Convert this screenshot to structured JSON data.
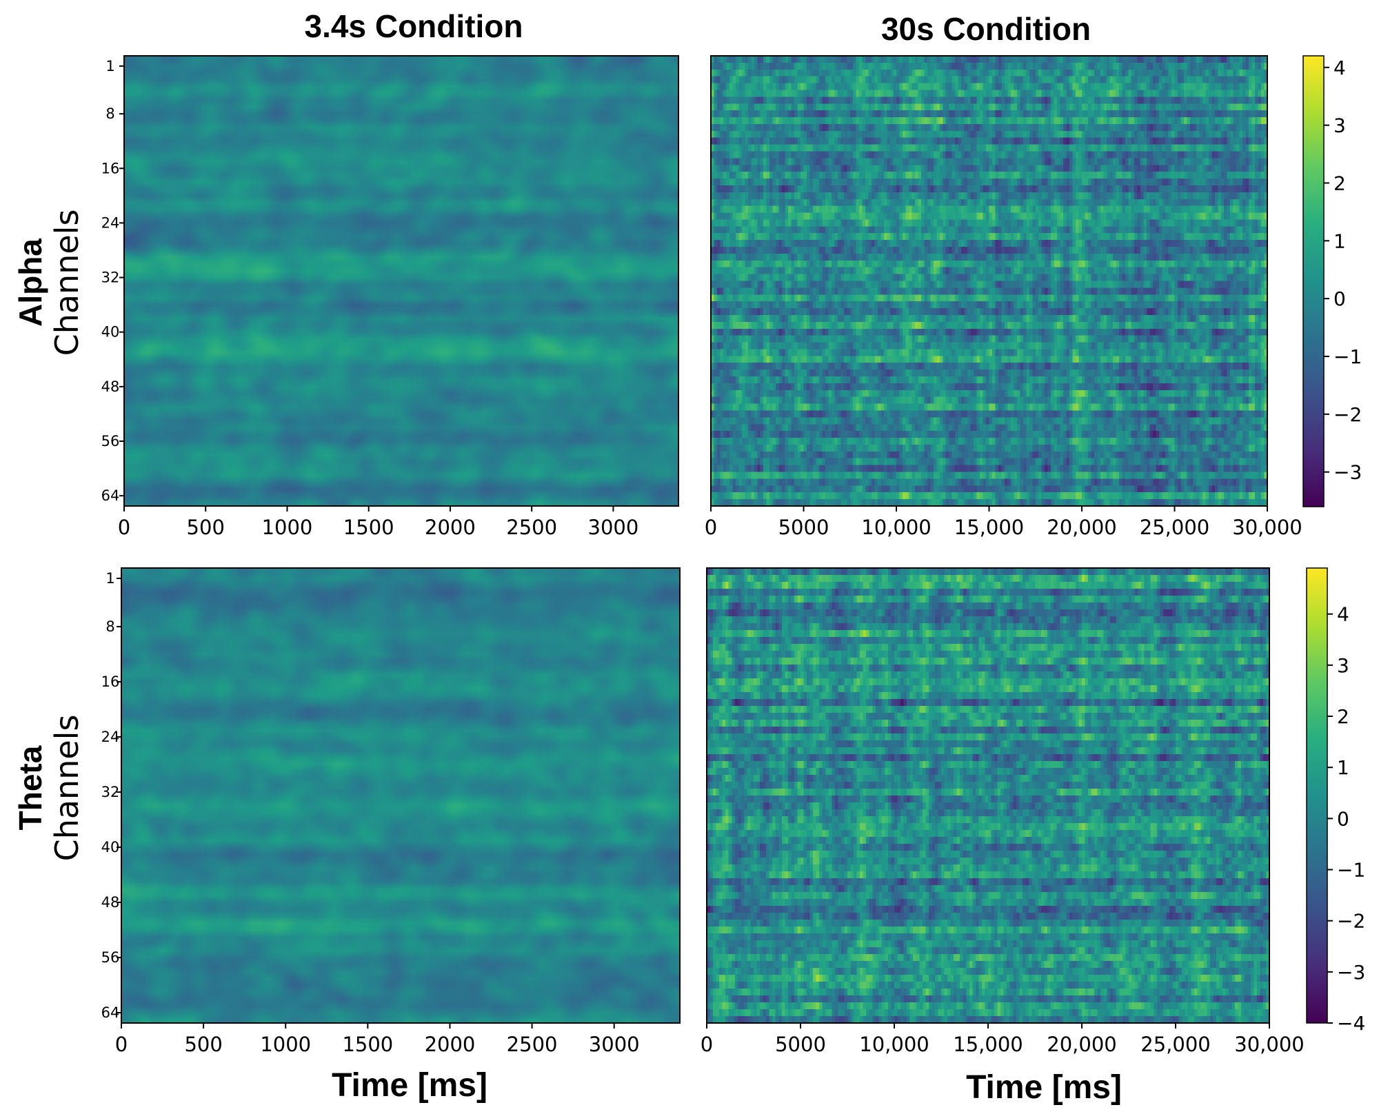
{
  "figure": {
    "column_titles": [
      "3.4s Condition",
      "30s Condition"
    ],
    "row_titles": [
      "Alpha",
      "Theta"
    ],
    "ylabel": "Channels",
    "xlabel": "Time [ms]"
  },
  "chart_data": [
    {
      "type": "heatmap",
      "id": "alpha-3.4s",
      "band": "Alpha",
      "condition": "3.4s Condition",
      "colormap": "viridis",
      "xlim": [
        0,
        3400
      ],
      "ylim": [
        1,
        64
      ],
      "xticks": [
        0,
        500,
        1000,
        1500,
        2000,
        2500,
        3000
      ],
      "xtick_labels": [
        "0",
        "500",
        "1000",
        "1500",
        "2000",
        "2500",
        "3000"
      ],
      "yticks": [
        1,
        8,
        16,
        24,
        32,
        40,
        48,
        56,
        64
      ],
      "ytick_labels": [
        "1",
        "8",
        "16",
        "24",
        "32",
        "40",
        "48",
        "56",
        "64"
      ],
      "xlabel": "",
      "ylabel": "Channels",
      "vmin": -3.6,
      "vmax": 4.2,
      "seed": 11,
      "smooth": "high"
    },
    {
      "type": "heatmap",
      "id": "alpha-30s",
      "band": "Alpha",
      "condition": "30s Condition",
      "colormap": "viridis",
      "xlim": [
        0,
        30000
      ],
      "ylim": [
        1,
        64
      ],
      "xticks": [
        0,
        5000,
        10000,
        15000,
        20000,
        25000,
        30000
      ],
      "xtick_labels": [
        "0",
        "5000",
        "10,000",
        "15,000",
        "20,000",
        "25,000",
        "30,000"
      ],
      "xlabel": "",
      "vmin": -3.6,
      "vmax": 4.2,
      "seed": 23,
      "smooth": "low",
      "colorbar": {
        "ticks": [
          4,
          3,
          2,
          1,
          0,
          -1,
          -2,
          -3
        ],
        "tick_labels": [
          "4",
          "3",
          "2",
          "1",
          "0",
          "−1",
          "−2",
          "−3"
        ],
        "vmin": -3.6,
        "vmax": 4.2
      }
    },
    {
      "type": "heatmap",
      "id": "theta-3.4s",
      "band": "Theta",
      "condition": "3.4s Condition",
      "colormap": "viridis",
      "xlim": [
        0,
        3400
      ],
      "ylim": [
        1,
        64
      ],
      "xticks": [
        0,
        500,
        1000,
        1500,
        2000,
        2500,
        3000
      ],
      "xtick_labels": [
        "0",
        "500",
        "1000",
        "1500",
        "2000",
        "2500",
        "3000"
      ],
      "yticks": [
        1,
        8,
        16,
        24,
        32,
        40,
        48,
        56,
        64
      ],
      "ytick_labels": [
        "1",
        "8",
        "16",
        "24",
        "32",
        "40",
        "48",
        "56",
        "64"
      ],
      "xlabel": "Time [ms]",
      "ylabel": "Channels",
      "vmin": -4.0,
      "vmax": 4.9,
      "seed": 37,
      "smooth": "high"
    },
    {
      "type": "heatmap",
      "id": "theta-30s",
      "band": "Theta",
      "condition": "30s Condition",
      "colormap": "viridis",
      "xlim": [
        0,
        30000
      ],
      "ylim": [
        1,
        64
      ],
      "xticks": [
        0,
        5000,
        10000,
        15000,
        20000,
        25000,
        30000
      ],
      "xtick_labels": [
        "0",
        "5000",
        "10,000",
        "15,000",
        "20,000",
        "25,000",
        "30,000"
      ],
      "xlabel": "Time [ms]",
      "vmin": -4.0,
      "vmax": 4.9,
      "seed": 41,
      "smooth": "low",
      "colorbar": {
        "ticks": [
          4,
          3,
          2,
          1,
          0,
          -1,
          -2,
          -3,
          -4
        ],
        "tick_labels": [
          "4",
          "3",
          "2",
          "1",
          "0",
          "−1",
          "−2",
          "−3",
          "−4"
        ],
        "vmin": -4.0,
        "vmax": 4.9
      }
    }
  ]
}
